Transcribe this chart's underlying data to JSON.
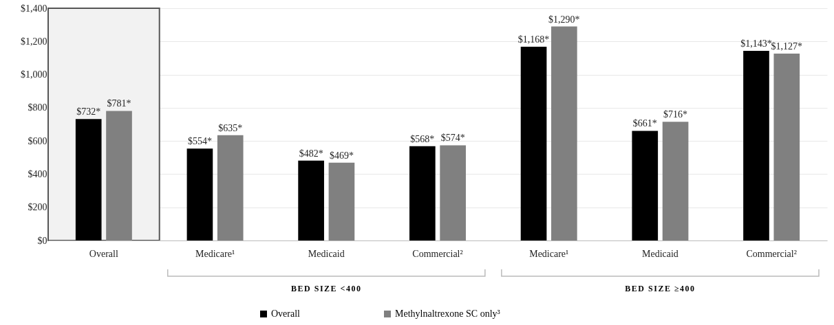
{
  "chart_data": {
    "type": "bar",
    "categories": [
      "Overall",
      "Medicare¹",
      "Medicaid",
      "Commercial²",
      "Medicare¹",
      "Medicaid",
      "Commercial²"
    ],
    "series": [
      {
        "name": "Overall",
        "color": "#000000",
        "values": [
          732,
          554,
          482,
          568,
          1168,
          661,
          1143
        ],
        "value_labels": [
          "$732*",
          "$554*",
          "$482*",
          "$568*",
          "$1,168*",
          "$661*",
          "$1,143*"
        ]
      },
      {
        "name": "Methylnaltrexone SC only³",
        "color": "#808080",
        "values": [
          781,
          635,
          469,
          574,
          1290,
          716,
          1127
        ],
        "value_labels": [
          "$781*",
          "$635*",
          "$469*",
          "$574*",
          "$1,290*",
          "$716*",
          "$1,127*"
        ]
      }
    ],
    "ylim": [
      0,
      1400
    ],
    "yticks": [
      {
        "value": 0,
        "label": "$0"
      },
      {
        "value": 200,
        "label": "$200"
      },
      {
        "value": 400,
        "label": "$400"
      },
      {
        "value": 600,
        "label": "$600"
      },
      {
        "value": 800,
        "label": "$800"
      },
      {
        "value": 1000,
        "label": "$1,000"
      },
      {
        "value": 1200,
        "label": "$1,200"
      },
      {
        "value": 1400,
        "label": "$1,400"
      }
    ],
    "grid": "y",
    "legend": "bottom",
    "bands": [
      {
        "axis": "x",
        "from": "Overall",
        "to": "Overall",
        "color": "#f2f2f2"
      }
    ],
    "annotations": [
      "BED SIZE <400",
      "BED SIZE ≥400"
    ]
  }
}
